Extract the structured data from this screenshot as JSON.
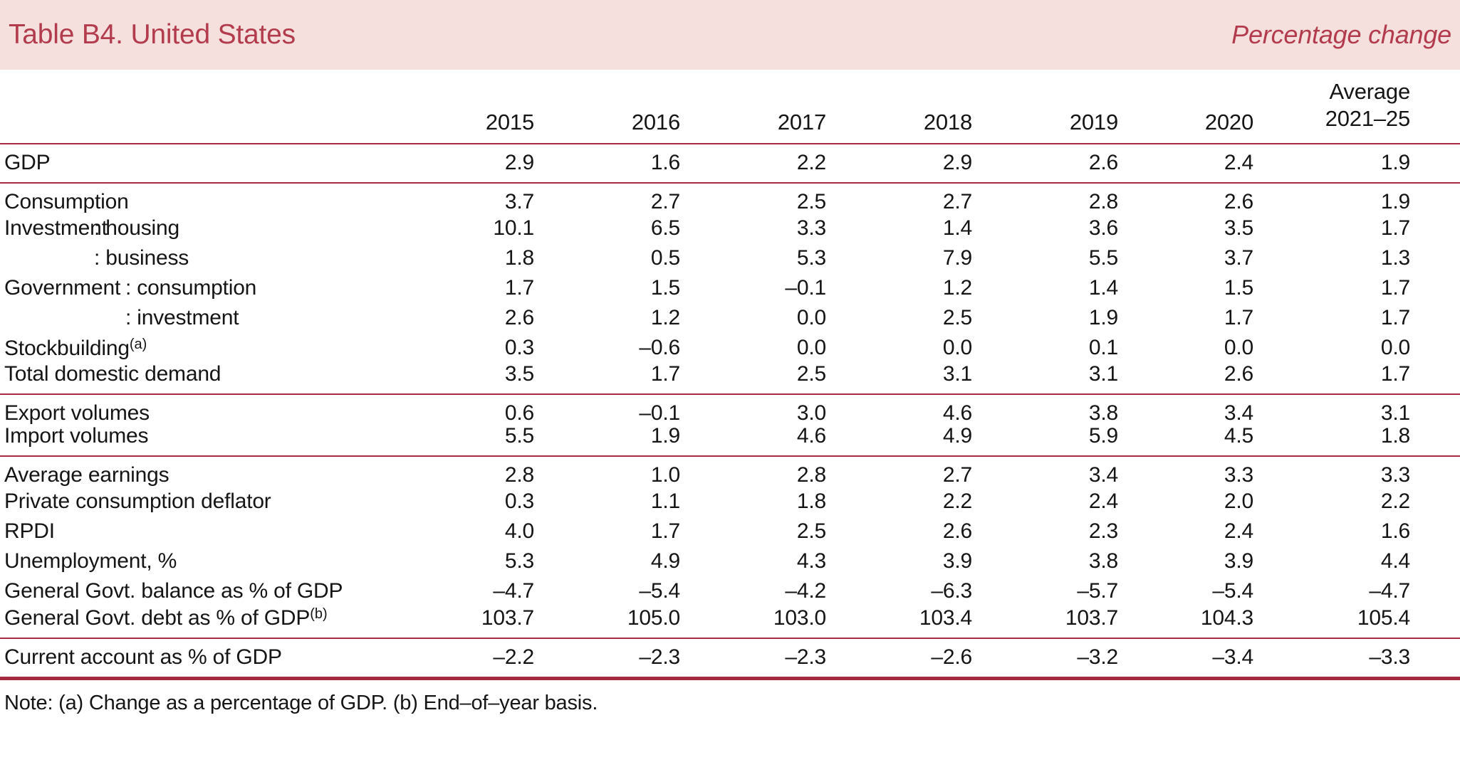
{
  "header": {
    "title": "Table B4. United States",
    "subtitle": "Percentage change"
  },
  "table": {
    "columns": [
      "2015",
      "2016",
      "2017",
      "2018",
      "2019",
      "2020"
    ],
    "avg_header": {
      "line1": "Average",
      "line2": "2021–25"
    },
    "sections": [
      {
        "rows": [
          {
            "label": {
              "head": "GDP"
            },
            "values": [
              "2.9",
              "1.6",
              "2.2",
              "2.9",
              "2.6",
              "2.4",
              "1.9"
            ]
          }
        ]
      },
      {
        "rows": [
          {
            "label": {
              "head": "Consumption"
            },
            "values": [
              "3.7",
              "2.7",
              "2.5",
              "2.7",
              "2.8",
              "2.6",
              "1.9"
            ]
          },
          {
            "label": {
              "head": "Investment",
              "sub": ": housing",
              "indent": "ind-inv"
            },
            "values": [
              "10.1",
              "6.5",
              "3.3",
              "1.4",
              "3.6",
              "3.5",
              "1.7"
            ]
          },
          {
            "label": {
              "head": "",
              "sub": ": business",
              "indent": "ind-inv"
            },
            "values": [
              "1.8",
              "0.5",
              "5.3",
              "7.9",
              "5.5",
              "3.7",
              "1.3"
            ]
          },
          {
            "label": {
              "head": "Government",
              "sub": ": consumption",
              "indent": "ind-gov"
            },
            "values": [
              "1.7",
              "1.5",
              "–0.1",
              "1.2",
              "1.4",
              "1.5",
              "1.7"
            ]
          },
          {
            "label": {
              "head": "",
              "sub": ": investment",
              "indent": "ind-gov"
            },
            "values": [
              "2.6",
              "1.2",
              "0.0",
              "2.5",
              "1.9",
              "1.7",
              "1.7"
            ]
          },
          {
            "label": {
              "head": "Stockbuilding",
              "sup": "(a)"
            },
            "values": [
              "0.3",
              "–0.6",
              "0.0",
              "0.0",
              "0.1",
              "0.0",
              "0.0"
            ]
          },
          {
            "label": {
              "head": "Total domestic demand"
            },
            "values": [
              "3.5",
              "1.7",
              "2.5",
              "3.1",
              "3.1",
              "2.6",
              "1.7"
            ]
          }
        ]
      },
      {
        "rows": [
          {
            "label": {
              "head": "Export volumes"
            },
            "values": [
              "0.6",
              "–0.1",
              "3.0",
              "4.6",
              "3.8",
              "3.4",
              "3.1"
            ]
          },
          {
            "label": {
              "head": "Import volumes"
            },
            "values": [
              "5.5",
              "1.9",
              "4.6",
              "4.9",
              "5.9",
              "4.5",
              "1.8"
            ]
          }
        ]
      },
      {
        "rows": [
          {
            "label": {
              "head": "Average earnings"
            },
            "values": [
              "2.8",
              "1.0",
              "2.8",
              "2.7",
              "3.4",
              "3.3",
              "3.3"
            ]
          },
          {
            "label": {
              "head": "Private consumption deflator"
            },
            "values": [
              "0.3",
              "1.1",
              "1.8",
              "2.2",
              "2.4",
              "2.0",
              "2.2"
            ]
          },
          {
            "label": {
              "head": "RPDI"
            },
            "values": [
              "4.0",
              "1.7",
              "2.5",
              "2.6",
              "2.3",
              "2.4",
              "1.6"
            ]
          },
          {
            "label": {
              "head": "Unemployment, %"
            },
            "values": [
              "5.3",
              "4.9",
              "4.3",
              "3.9",
              "3.8",
              "3.9",
              "4.4"
            ]
          },
          {
            "label": {
              "head": "General Govt. balance as % of GDP"
            },
            "values": [
              "–4.7",
              "–5.4",
              "–4.2",
              "–6.3",
              "–5.7",
              "–5.4",
              "–4.7"
            ]
          },
          {
            "label": {
              "head": "General Govt. debt as % of GDP",
              "sup": "(b)"
            },
            "values": [
              "103.7",
              "105.0",
              "103.0",
              "103.4",
              "103.7",
              "104.3",
              "105.4"
            ]
          }
        ]
      },
      {
        "final": true,
        "rows": [
          {
            "label": {
              "head": "Current account as % of GDP"
            },
            "values": [
              "–2.2",
              "–2.3",
              "–2.3",
              "–2.6",
              "–3.2",
              "–3.4",
              "–3.3"
            ]
          }
        ]
      }
    ]
  },
  "note": "Note: (a) Change as a percentage of GDP. (b) End–of–year basis.",
  "colors": {
    "rule": "#a62a42",
    "band_background": "#f5e0dd",
    "title_text": "#b23b4d",
    "body_text": "#151515"
  }
}
